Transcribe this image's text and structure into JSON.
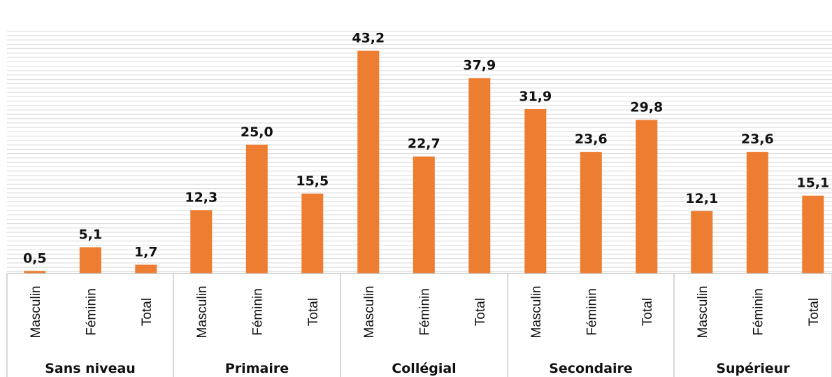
{
  "chart_data": {
    "type": "bar",
    "title": "",
    "xlabel": "",
    "ylabel": "",
    "ylim": [
      0,
      47
    ],
    "grid": true,
    "legend": "none",
    "bar_color": "#ED7D31",
    "groups": [
      {
        "name": "Sans niveau",
        "categories": [
          "Masculin",
          "Féminin",
          "Total"
        ],
        "values": [
          0.5,
          5.1,
          1.7
        ],
        "labels": [
          "0,5",
          "5,1",
          "1,7"
        ]
      },
      {
        "name": "Primaire",
        "categories": [
          "Masculin",
          "Féminin",
          "Total"
        ],
        "values": [
          12.3,
          25.0,
          15.5
        ],
        "labels": [
          "12,3",
          "25,0",
          "15,5"
        ]
      },
      {
        "name": "Collégial",
        "categories": [
          "Masculin",
          "Féminin",
          "Total"
        ],
        "values": [
          43.2,
          22.7,
          37.9
        ],
        "labels": [
          "43,2",
          "22,7",
          "37,9"
        ]
      },
      {
        "name": "Secondaire",
        "categories": [
          "Masculin",
          "Féminin",
          "Total"
        ],
        "values": [
          31.9,
          23.6,
          29.8
        ],
        "labels": [
          "31,9",
          "23,6",
          "29,8"
        ]
      },
      {
        "name": "Supérieur",
        "categories": [
          "Masculin",
          "Féminin",
          "Total"
        ],
        "values": [
          12.1,
          23.6,
          15.1
        ],
        "labels": [
          "12,1",
          "23,6",
          "15,1"
        ]
      }
    ]
  }
}
